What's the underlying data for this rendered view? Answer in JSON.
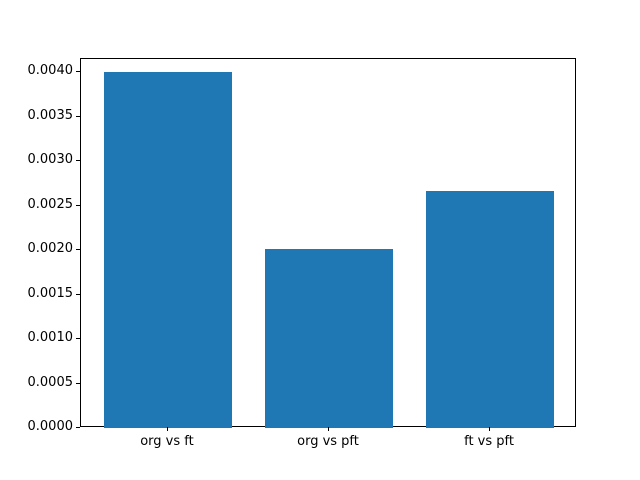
{
  "figure": {
    "background": "#ffffff"
  },
  "chart_data": {
    "type": "bar",
    "title": "",
    "xlabel": "",
    "ylabel": "",
    "categories": [
      "org vs ft",
      "org vs pft",
      "ft vs pft"
    ],
    "values": [
      0.004,
      0.00201,
      0.00266
    ],
    "ylim": [
      0,
      0.00415
    ],
    "yticks": [
      0.0,
      0.0005,
      0.001,
      0.0015,
      0.002,
      0.0025,
      0.003,
      0.0035,
      0.004
    ],
    "ytick_label_decimals": 4,
    "bar_color": "#1f77b4",
    "axis_color": "#000000",
    "tick_label_color": "#000000",
    "grid": false,
    "legend": null
  }
}
